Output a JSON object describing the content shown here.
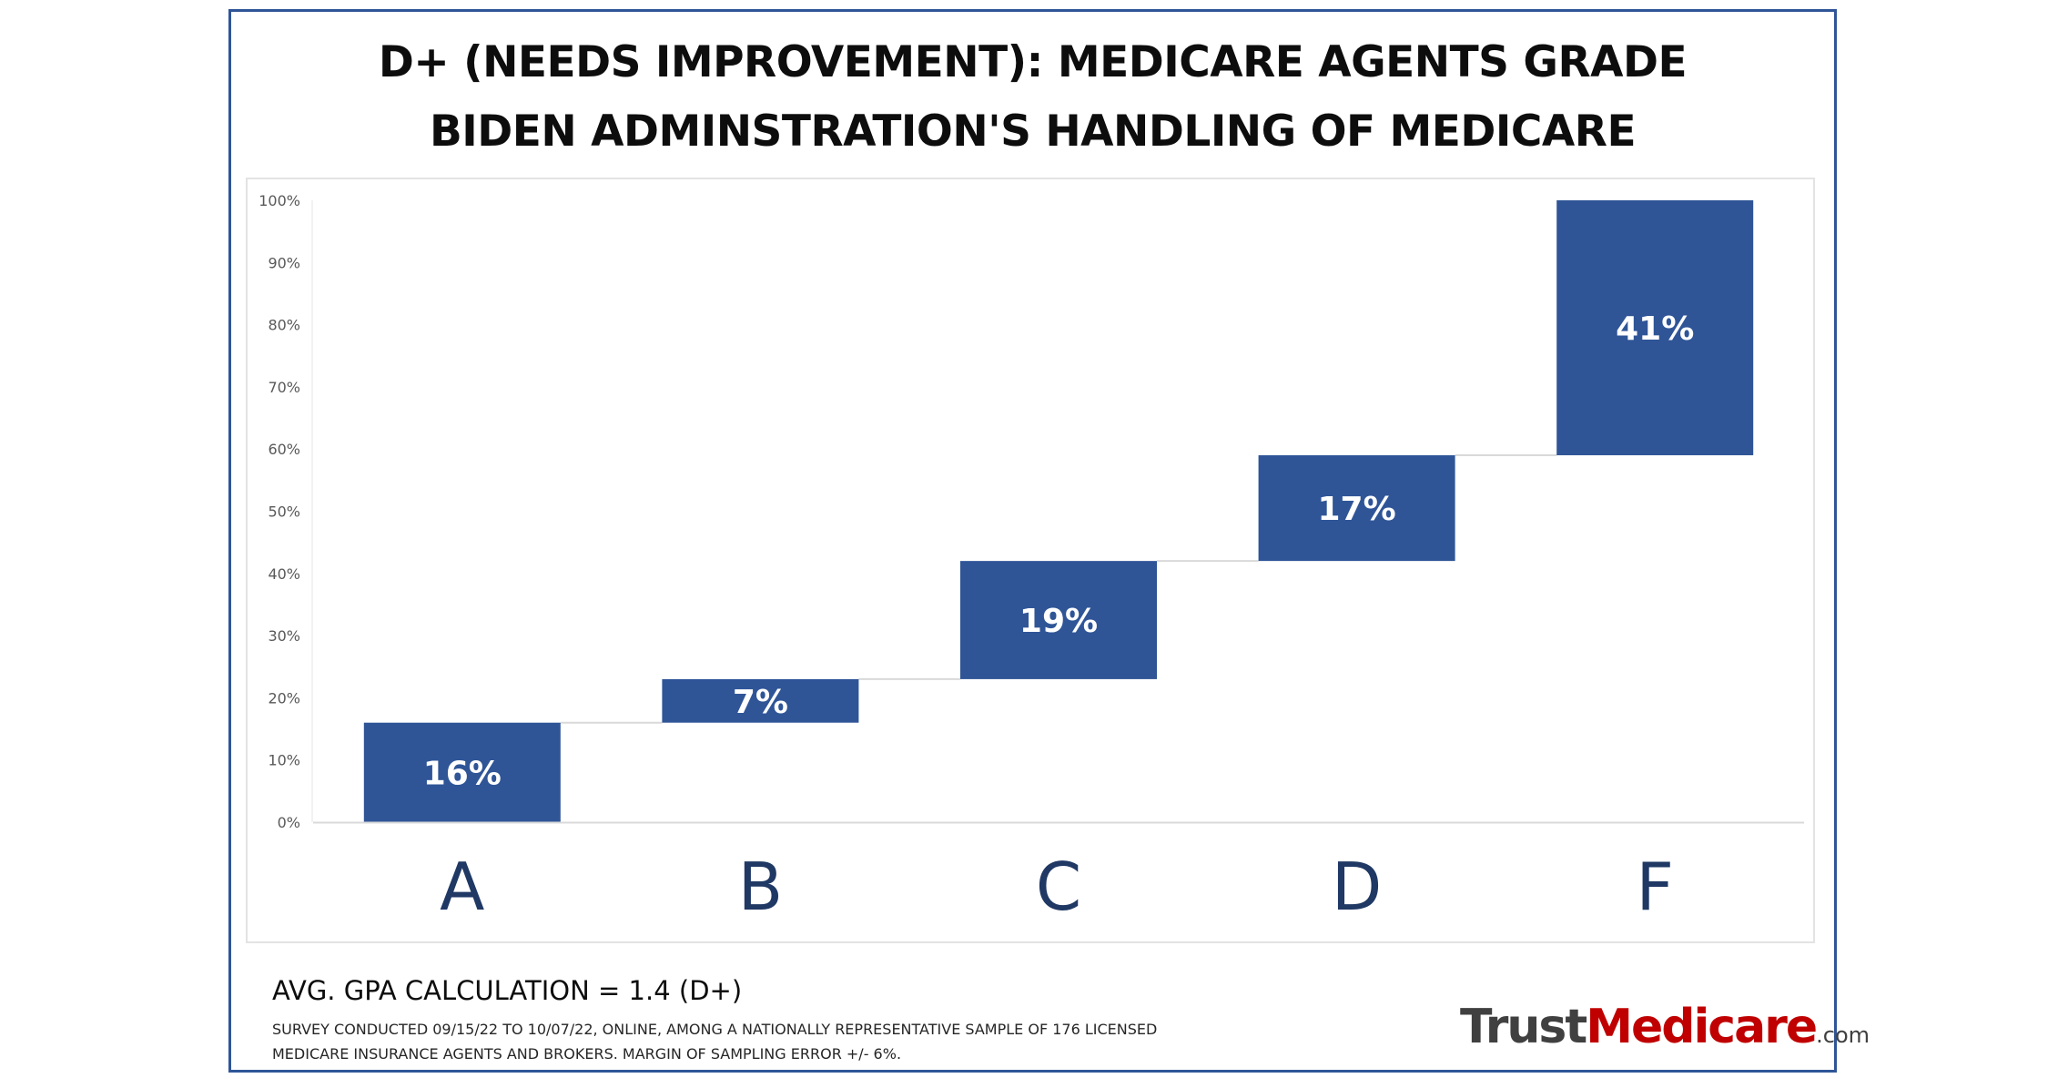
{
  "title_lines": [
    "D+ (NEEDS IMPROVEMENT): MEDICARE AGENTS GRADE",
    "BIDEN ADMINSTRATION'S HANDLING OF MEDICARE"
  ],
  "chart_data": {
    "type": "bar",
    "subtype": "waterfall",
    "title": "D+ (NEEDS IMPROVEMENT): MEDICARE AGENTS GRADE BIDEN ADMINSTRATION'S HANDLING OF MEDICARE",
    "categories": [
      "A",
      "B",
      "C",
      "D",
      "F"
    ],
    "values": [
      16,
      7,
      19,
      17,
      41
    ],
    "data_labels": [
      "16%",
      "7%",
      "19%",
      "17%",
      "41%"
    ],
    "ylim": [
      0,
      100
    ],
    "yticks": [
      0,
      10,
      20,
      30,
      40,
      50,
      60,
      70,
      80,
      90,
      100
    ],
    "ytick_labels": [
      "0%",
      "10%",
      "20%",
      "30%",
      "40%",
      "50%",
      "60%",
      "70%",
      "80%",
      "90%",
      "100%"
    ],
    "grid": false,
    "legend": "none",
    "bar_color": "#2f5597",
    "connector_color": "#d9d9d9"
  },
  "footer": {
    "gpa": "AVG. GPA CALCULATION = 1.4 (D+)",
    "note_line1": "Survey conducted 09/15/22 to 10/07/22, online, among a nationally representative sample of 176 licensed",
    "note_line2": "Medicare insurance agents and brokers. Margin of sampling error +/- 6%."
  },
  "logo": {
    "trust": "Trust",
    "medicare": "Medicare",
    "com": ".com"
  }
}
